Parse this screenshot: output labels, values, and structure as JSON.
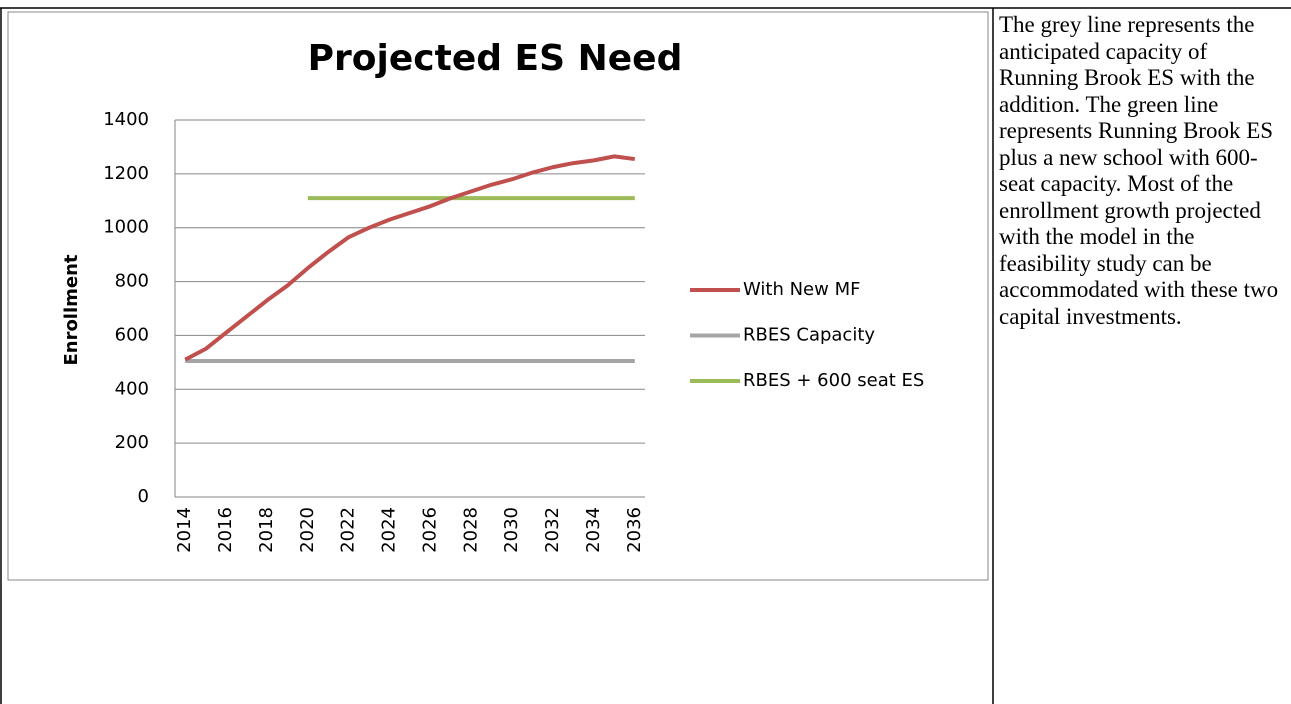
{
  "chart_data": {
    "type": "line",
    "title": "Projected ES Need",
    "y_label": "Enrollment",
    "categories": [
      "2014",
      null,
      "2016",
      null,
      "2018",
      null,
      "2020",
      null,
      "2022",
      null,
      "2024",
      null,
      "2026",
      null,
      "2028",
      null,
      "2030",
      null,
      "2032",
      null,
      "2034",
      null,
      "2036"
    ],
    "series": [
      {
        "name": "With New MF",
        "color": "#c0504d",
        "values": [
          510,
          550,
          610,
          670,
          730,
          785,
          850,
          910,
          965,
          1000,
          1030,
          1055,
          1080,
          1110,
          1135,
          1160,
          1180,
          1205,
          1225,
          1240,
          1250,
          1265,
          1255
        ]
      },
      {
        "name": "RBES Capacity",
        "color": "#a5a5a5",
        "values": [
          505,
          505,
          505,
          505,
          505,
          505,
          505,
          505,
          505,
          505,
          505,
          505,
          505,
          505,
          505,
          505,
          505,
          505,
          505,
          505,
          505,
          505,
          505
        ]
      },
      {
        "name": "RBES + 600 seat ES",
        "color": "#9bbb59",
        "values": [
          null,
          null,
          null,
          null,
          null,
          null,
          1110,
          1110,
          1110,
          1110,
          1110,
          1110,
          1110,
          1110,
          1110,
          1110,
          1110,
          1110,
          1110,
          1110,
          1110,
          1110,
          1110
        ]
      }
    ],
    "ylim": [
      0,
      1400
    ],
    "yticks": [
      0,
      200,
      400,
      600,
      800,
      1000,
      1200,
      1400
    ],
    "grid": true,
    "legend": "right"
  },
  "description": {
    "text": "The grey line represents the anticipated capacity of Running Brook ES with the addition. The green line represents Running Brook ES plus a new school with 600-seat capacity. Most of the enrollment growth projected with the model in the feasibility study can be accommodated with these two capital investments."
  }
}
